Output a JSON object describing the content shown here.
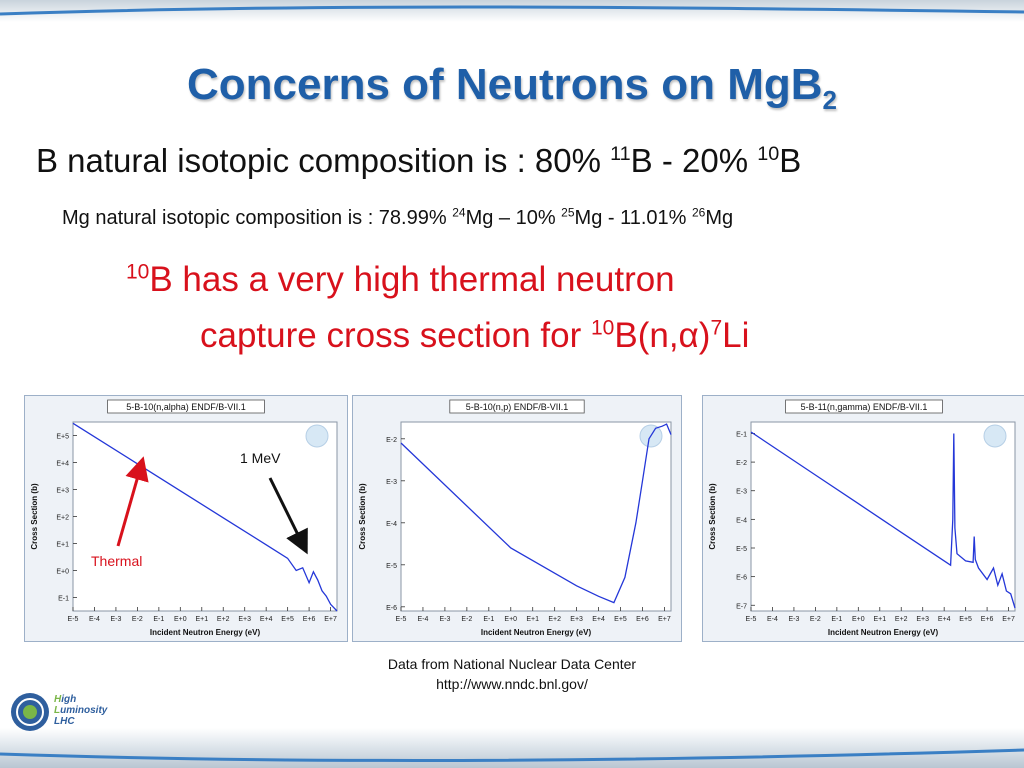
{
  "slide": {
    "title_main": "Concerns of Neutrons on MgB",
    "title_sub": "2",
    "line1": {
      "pre": "B natural isotopic composition is : 80% ",
      "sup1": "11",
      "mid": "B  -  20% ",
      "sup2": "10",
      "post": "B"
    },
    "line2": {
      "pre": "Mg natural isotopic composition is : 78.99% ",
      "sup1": "24",
      "mid1": "Mg  –  10% ",
      "sup2": "25",
      "mid2": "Mg  -  11.01%  ",
      "sup3": "26",
      "post": "Mg"
    },
    "red1": {
      "sup": "10",
      "text": "B has a very high thermal neutron"
    },
    "red2": {
      "pre": "capture cross section for ",
      "sup1": "10",
      "mid": "B(n,α)",
      "sup2": "7",
      "post": "Li"
    },
    "annotation_mev": "1 MeV",
    "annotation_thermal": "Thermal",
    "source_line1": "Data from National Nuclear Data Center",
    "source_line2": "http://www.nndc.bnl.gov/",
    "logo": {
      "l1a": "H",
      "l1b": "igh",
      "l2a": "L",
      "l2b": "uminosity",
      "l3": "LHC"
    }
  },
  "colors": {
    "title": "#1f5fa8",
    "red": "#d8111c",
    "curve": "#2437d8",
    "frame": "#9db0c8"
  },
  "chart_data": [
    {
      "type": "line",
      "title": "5-B-10(n,alpha) ENDF/B-VII.1",
      "xlabel": "Incident Neutron Energy (eV)",
      "ylabel": "Cross Section (b)",
      "xscale": "log",
      "yscale": "log",
      "xticks": [
        "E-5",
        "E-4",
        "E-3",
        "E-2",
        "E-1",
        "E+0",
        "E+1",
        "E+2",
        "E+3",
        "E+4",
        "E+5",
        "E+6",
        "E+7"
      ],
      "yticks": [
        "E-1",
        "E+0",
        "E+1",
        "E+2",
        "E+3",
        "E+4",
        "E+5"
      ],
      "xlim_log": [
        -5,
        7.3
      ],
      "ylim_log": [
        -1.5,
        5.5
      ],
      "series": [
        {
          "x_log": [
            -5,
            -2,
            0,
            2,
            4,
            5,
            5.4,
            5.7,
            6,
            6.2,
            6.4,
            6.6,
            6.8,
            7,
            7.3
          ],
          "y_log": [
            5.45,
            3.95,
            2.95,
            1.95,
            0.95,
            0.45,
            0.0,
            0.1,
            -0.45,
            -0.05,
            -0.35,
            -0.75,
            -0.95,
            -1.25,
            -1.5
          ]
        }
      ]
    },
    {
      "type": "line",
      "title": "5-B-10(n,p) ENDF/B-VII.1",
      "xlabel": "Incident Neutron Energy (eV)",
      "ylabel": "Cross Section (b)",
      "xscale": "log",
      "yscale": "log",
      "xticks": [
        "E-5",
        "E-4",
        "E-3",
        "E-2",
        "E-1",
        "E+0",
        "E+1",
        "E+2",
        "E+3",
        "E+4",
        "E+5",
        "E+6",
        "E+7"
      ],
      "yticks": [
        "E-6",
        "E-5",
        "E-4",
        "E-3",
        "E-2"
      ],
      "xlim_log": [
        -5,
        7.3
      ],
      "ylim_log": [
        -6.1,
        -1.6
      ],
      "series": [
        {
          "x_log": [
            -5,
            0,
            3,
            4,
            4.7,
            5.2,
            5.7,
            6,
            6.3,
            6.6,
            6.9,
            7.1,
            7.3
          ],
          "y_log": [
            -2.1,
            -4.6,
            -5.5,
            -5.75,
            -5.9,
            -5.3,
            -4.0,
            -3.0,
            -2.0,
            -1.75,
            -1.7,
            -1.65,
            -1.9
          ]
        }
      ]
    },
    {
      "type": "line",
      "title": "5-B-11(n,gamma) ENDF/B-VII.1",
      "xlabel": "Incident Neutron Energy (eV)",
      "ylabel": "Cross Section (b)",
      "xscale": "log",
      "yscale": "log",
      "xticks": [
        "E-5",
        "E-4",
        "E-3",
        "E-2",
        "E-1",
        "E+0",
        "E+1",
        "E+2",
        "E+3",
        "E+4",
        "E+5",
        "E+6",
        "E+7"
      ],
      "yticks": [
        "E-7",
        "E-6",
        "E-5",
        "E-4",
        "E-3",
        "E-2",
        "E-1"
      ],
      "xlim_log": [
        -5,
        7.3
      ],
      "ylim_log": [
        -7.2,
        -0.6
      ],
      "series": [
        {
          "x_log": [
            -5,
            -2,
            0,
            2,
            4,
            4.3,
            4.4,
            4.45,
            4.5,
            4.6,
            5,
            5.35,
            5.4,
            5.45,
            5.6,
            6,
            6.3,
            6.5,
            6.7,
            6.9,
            7.1,
            7.3
          ],
          "y_log": [
            -0.95,
            -2.45,
            -3.45,
            -4.45,
            -5.45,
            -5.6,
            -4.0,
            -1.0,
            -4.3,
            -5.2,
            -5.45,
            -5.5,
            -4.6,
            -5.4,
            -5.7,
            -6.1,
            -5.7,
            -6.3,
            -5.9,
            -6.5,
            -6.6,
            -7.1
          ]
        }
      ]
    }
  ]
}
